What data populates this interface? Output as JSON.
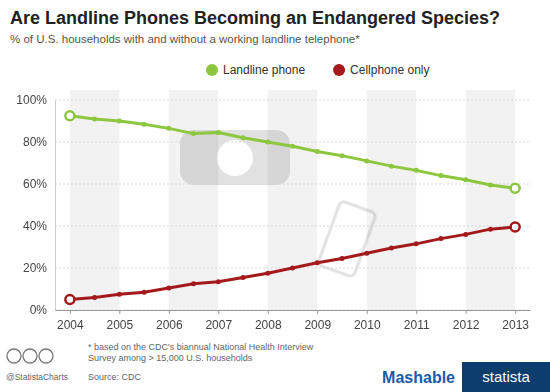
{
  "chart_data": {
    "type": "line",
    "title": "Are Landline Phones Becoming an Endangered Species?",
    "subtitle": "% of U.S. households with and without a working landline telephone*",
    "x": [
      2004,
      2004.5,
      2005,
      2005.5,
      2006,
      2006.5,
      2007,
      2007.5,
      2008,
      2008.5,
      2009,
      2009.5,
      2010,
      2010.5,
      2011,
      2011.5,
      2012,
      2012.5,
      2013
    ],
    "series": [
      {
        "name": "Landline phone",
        "color": "#8dc63f",
        "values": [
          92.5,
          91,
          90,
          88.5,
          86.5,
          84,
          84.5,
          82,
          80,
          78,
          75.5,
          73.5,
          71,
          68.5,
          66.5,
          64,
          62,
          59.5,
          58
        ]
      },
      {
        "name": "Cellphone only",
        "color": "#a3191c",
        "values": [
          5,
          6,
          7.5,
          8.5,
          10.5,
          12.5,
          13.5,
          15.5,
          17.5,
          20,
          22.5,
          24.5,
          27,
          29.5,
          31.5,
          34,
          36,
          38.5,
          39.5
        ]
      }
    ],
    "xlim": [
      2003.7,
      2013.3
    ],
    "xticks": [
      2004,
      2005,
      2006,
      2007,
      2008,
      2009,
      2010,
      2011,
      2012,
      2013
    ],
    "ylim": [
      0,
      100
    ],
    "yticks": [
      {
        "value": 0,
        "label": "0%"
      },
      {
        "value": 20,
        "label": "20%"
      },
      {
        "value": 40,
        "label": "40%"
      },
      {
        "value": 60,
        "label": "60%"
      },
      {
        "value": 80,
        "label": "80%"
      },
      {
        "value": 100,
        "label": "100%"
      }
    ],
    "grid": true,
    "legend": "top",
    "marker": "circle",
    "footnote": [
      "* based on the CDC's biannual National Health Interview",
      "Survey among > 15,000 U.S. households"
    ],
    "source": "Source: CDC",
    "credit": "@StatistaCharts",
    "brands": [
      "Mashable",
      "statista"
    ]
  }
}
